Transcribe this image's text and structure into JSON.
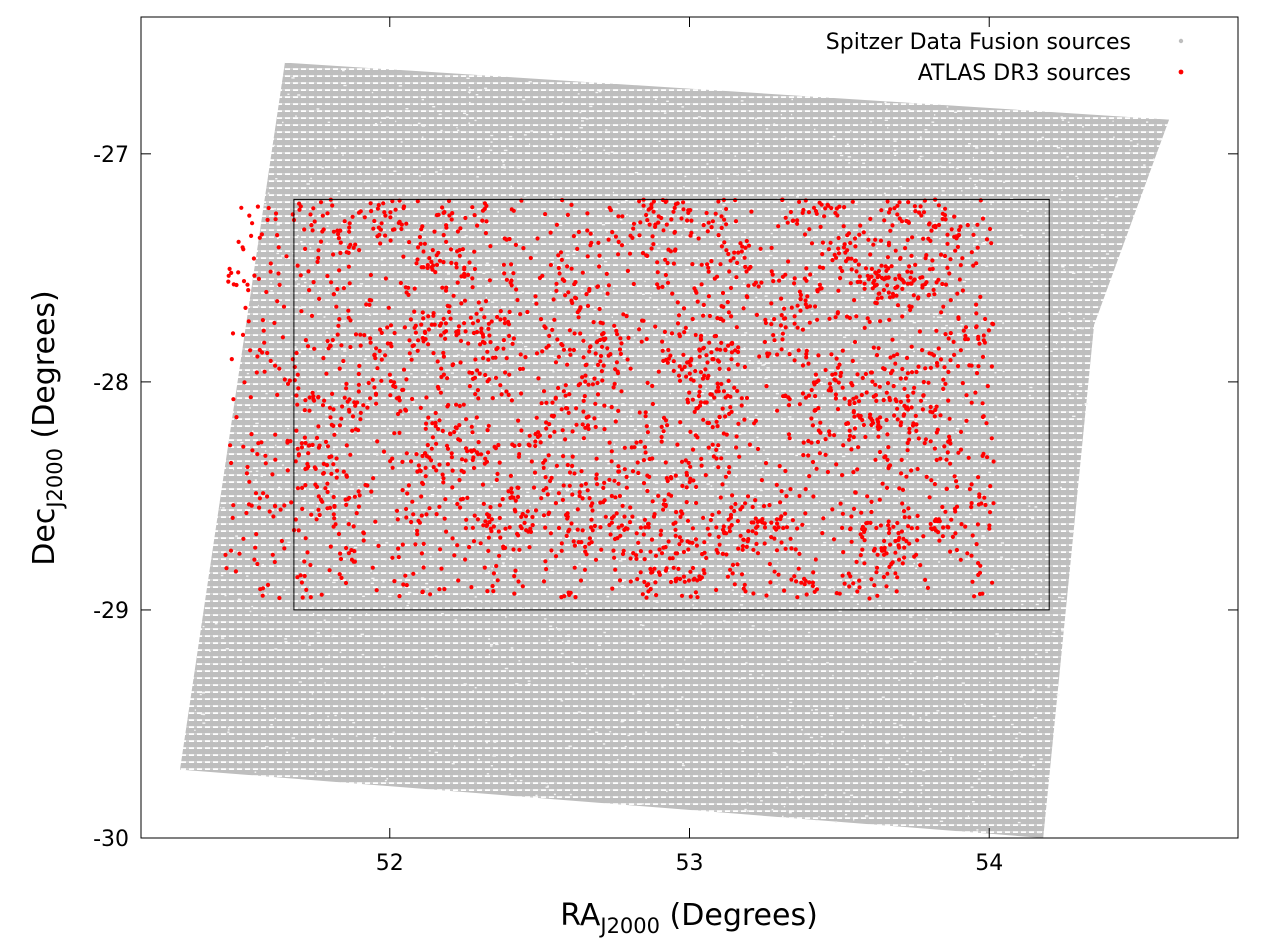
{
  "chart_data": {
    "type": "scatter",
    "x_axis": {
      "label_main": "RA",
      "label_sub": "J2000",
      "label_unit": " (Degrees)",
      "range": [
        51.17,
        54.83
      ],
      "ticks": [
        52,
        53,
        54
      ],
      "tick_labels": [
        "52",
        "53",
        "54"
      ]
    },
    "y_axis": {
      "label_main": "Dec",
      "label_sub": "J2000",
      "label_unit": " (Degrees)",
      "range": [
        -30,
        -26.4
      ],
      "ticks": [
        -27,
        -28,
        -29,
        -30
      ],
      "tick_labels": [
        "-27",
        "-28",
        "-29",
        "-30"
      ]
    },
    "grid": false,
    "legend": {
      "position": "top-right",
      "entries": [
        {
          "label": "Spitzer Data Fusion sources",
          "color": "#bebebe"
        },
        {
          "label": "ATLAS DR3 sources",
          "color": "#ff0000"
        }
      ]
    },
    "series": [
      {
        "name": "Spitzer Data Fusion sources",
        "color": "#bebebe",
        "style": "dense-points",
        "footprint": [
          [
            51.65,
            -26.6
          ],
          [
            54.6,
            -26.85
          ],
          [
            54.35,
            -27.75
          ],
          [
            54.18,
            -30.0
          ],
          [
            51.3,
            -29.7
          ]
        ]
      },
      {
        "name": "ATLAS DR3 sources",
        "color": "#ff0000",
        "style": "points",
        "count": 3000,
        "region": {
          "ra_min": 51.45,
          "ra_max": 54.02,
          "dec_min": -28.95,
          "dec_max": -27.2
        }
      }
    ],
    "annotations": [
      {
        "type": "rectangle",
        "ra": [
          51.68,
          54.2
        ],
        "dec": [
          -29.0,
          -27.2
        ],
        "color": "#000000"
      }
    ]
  }
}
